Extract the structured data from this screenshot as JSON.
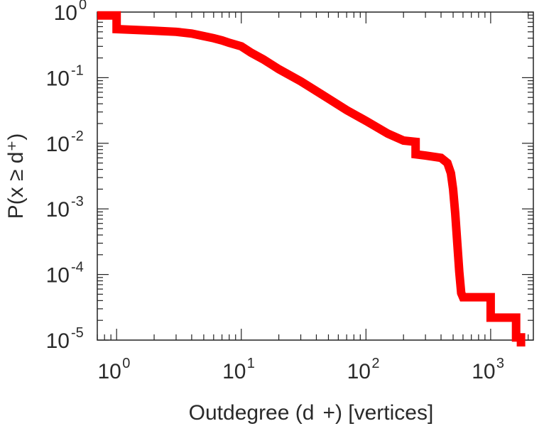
{
  "chart_data": {
    "type": "line",
    "title": "",
    "xlabel": "Outdegree (d  +) [vertices]",
    "ylabel": "P(x ≥ d⁺)",
    "xscale": "log",
    "yscale": "log",
    "xlim": [
      0.7,
      2200
    ],
    "ylim": [
      1e-05,
      1
    ],
    "grid": false,
    "legend": "none",
    "line_color": "#ff0000",
    "xticks": [
      {
        "base": "10",
        "exp": "0",
        "value": 1
      },
      {
        "base": "10",
        "exp": "1",
        "value": 10
      },
      {
        "base": "10",
        "exp": "2",
        "value": 100
      },
      {
        "base": "10",
        "exp": "3",
        "value": 1000
      }
    ],
    "yticks": [
      {
        "base": "10",
        "exp": "0",
        "value": 1
      },
      {
        "base": "10",
        "exp": "-1",
        "value": 0.1
      },
      {
        "base": "10",
        "exp": "-2",
        "value": 0.01
      },
      {
        "base": "10",
        "exp": "-3",
        "value": 0.001
      },
      {
        "base": "10",
        "exp": "-4",
        "value": 0.0001
      },
      {
        "base": "10",
        "exp": "-5",
        "value": 1e-05
      }
    ],
    "series": [
      {
        "x": [
          0.7,
          1,
          1,
          2,
          3,
          4,
          5,
          6,
          7,
          8,
          10,
          12,
          15,
          20,
          30,
          50,
          70,
          100,
          150,
          200,
          250,
          250,
          300,
          400,
          450,
          480,
          500,
          520,
          540,
          560,
          580,
          600,
          600,
          1000,
          1000,
          1600,
          1600,
          1750,
          1750
        ],
        "y": [
          0.89,
          0.89,
          0.55,
          0.52,
          0.5,
          0.47,
          0.43,
          0.4,
          0.37,
          0.34,
          0.3,
          0.24,
          0.19,
          0.135,
          0.088,
          0.048,
          0.032,
          0.022,
          0.014,
          0.011,
          0.0105,
          0.0068,
          0.0065,
          0.006,
          0.005,
          0.0035,
          0.002,
          0.00085,
          0.0003,
          0.00011,
          5.2e-05,
          4.5e-05,
          4.5e-05,
          4.5e-05,
          2.2e-05,
          2.2e-05,
          1.1e-05,
          1.1e-05,
          8e-06
        ]
      }
    ]
  }
}
